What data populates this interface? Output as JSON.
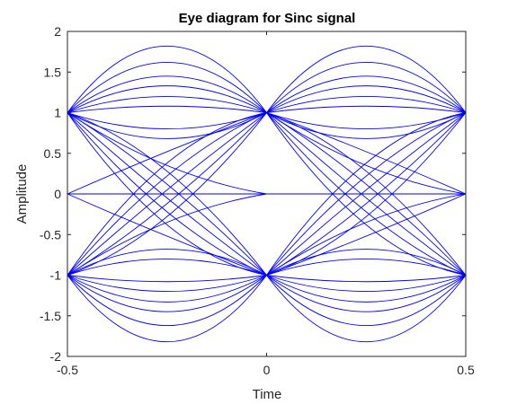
{
  "chart_data": {
    "type": "line",
    "title": "Eye diagram for Sinc signal",
    "xlabel": "Time",
    "ylabel": "Amplitude",
    "xlim": [
      -0.5,
      0.5
    ],
    "ylim": [
      -2,
      2
    ],
    "xticks": [
      -0.5,
      0,
      0.5
    ],
    "xtick_labels": [
      "-0.5",
      "0",
      "0.5"
    ],
    "yticks": [
      -2,
      -1.5,
      -1,
      -0.5,
      0,
      0.5,
      1,
      1.5,
      2
    ],
    "ytick_labels": [
      "-2",
      "-1.5",
      "-1",
      "-0.5",
      "0",
      "0.5",
      "1",
      "1.5",
      "2"
    ],
    "grid": false,
    "line_color": "#0000ff",
    "sample_times": [
      -0.5,
      0,
      0.5
    ],
    "symbol_levels": [
      -1,
      0,
      1
    ],
    "eye_opening_amplitude": [
      -1.82,
      1.82
    ],
    "traces": [
      {
        "x": [
          -0.5,
          -0.25,
          0
        ],
        "y": [
          1,
          1.82,
          1
        ]
      },
      {
        "x": [
          -0.5,
          -0.25,
          0
        ],
        "y": [
          1,
          1.62,
          1
        ]
      },
      {
        "x": [
          -0.5,
          -0.25,
          0
        ],
        "y": [
          1,
          1.45,
          1
        ]
      },
      {
        "x": [
          -0.5,
          -0.25,
          0
        ],
        "y": [
          1,
          1.33,
          1
        ]
      },
      {
        "x": [
          -0.5,
          -0.25,
          0
        ],
        "y": [
          1,
          1.2,
          1
        ]
      },
      {
        "x": [
          -0.5,
          -0.25,
          0
        ],
        "y": [
          1,
          1.08,
          1
        ]
      },
      {
        "x": [
          -0.5,
          -0.25,
          0
        ],
        "y": [
          1,
          0.8,
          1
        ]
      },
      {
        "x": [
          -0.5,
          -0.25,
          0
        ],
        "y": [
          1,
          0.68,
          1
        ]
      },
      {
        "x": [
          -0.5,
          -0.25,
          0
        ],
        "y": [
          -1,
          -1.82,
          -1
        ]
      },
      {
        "x": [
          -0.5,
          -0.25,
          0
        ],
        "y": [
          -1,
          -1.62,
          -1
        ]
      },
      {
        "x": [
          -0.5,
          -0.25,
          0
        ],
        "y": [
          -1,
          -1.45,
          -1
        ]
      },
      {
        "x": [
          -0.5,
          -0.25,
          0
        ],
        "y": [
          -1,
          -1.33,
          -1
        ]
      },
      {
        "x": [
          -0.5,
          -0.25,
          0
        ],
        "y": [
          -1,
          -1.2,
          -1
        ]
      },
      {
        "x": [
          -0.5,
          -0.25,
          0
        ],
        "y": [
          -1,
          -1.08,
          -1
        ]
      },
      {
        "x": [
          -0.5,
          -0.25,
          0
        ],
        "y": [
          -1,
          -0.8,
          -1
        ]
      },
      {
        "x": [
          -0.5,
          -0.25,
          0
        ],
        "y": [
          -1,
          -0.68,
          -1
        ]
      },
      {
        "x": [
          -0.5,
          -0.25,
          0
        ],
        "y": [
          1,
          0.28,
          -1
        ]
      },
      {
        "x": [
          -0.5,
          -0.25,
          0
        ],
        "y": [
          1,
          0.12,
          -1
        ]
      },
      {
        "x": [
          -0.5,
          -0.25,
          0
        ],
        "y": [
          1,
          -0.05,
          -1
        ]
      },
      {
        "x": [
          -0.5,
          -0.25,
          0
        ],
        "y": [
          1,
          -0.22,
          -1
        ]
      },
      {
        "x": [
          -0.5,
          -0.25,
          0
        ],
        "y": [
          1,
          -0.38,
          -1
        ]
      },
      {
        "x": [
          -0.5,
          -0.25,
          0
        ],
        "y": [
          -1,
          -0.28,
          1
        ]
      },
      {
        "x": [
          -0.5,
          -0.25,
          0
        ],
        "y": [
          -1,
          -0.12,
          1
        ]
      },
      {
        "x": [
          -0.5,
          -0.25,
          0
        ],
        "y": [
          -1,
          0.05,
          1
        ]
      },
      {
        "x": [
          -0.5,
          -0.25,
          0
        ],
        "y": [
          -1,
          0.22,
          1
        ]
      },
      {
        "x": [
          -0.5,
          -0.25,
          0
        ],
        "y": [
          -1,
          0.38,
          1
        ]
      },
      {
        "x": [
          -0.5,
          -0.25,
          0
        ],
        "y": [
          0,
          0.52,
          1
        ]
      },
      {
        "x": [
          -0.5,
          -0.25,
          0
        ],
        "y": [
          0,
          -0.52,
          -1
        ]
      },
      {
        "x": [
          -0.5,
          -0.25,
          0
        ],
        "y": [
          1,
          0.35,
          0
        ]
      },
      {
        "x": [
          -0.5,
          -0.25,
          0
        ],
        "y": [
          -1,
          -0.35,
          0
        ]
      },
      {
        "x": [
          -0.5,
          -0.25,
          0
        ],
        "y": [
          0,
          0,
          0
        ]
      },
      {
        "x": [
          0,
          0.25,
          0.5
        ],
        "y": [
          1,
          1.82,
          1
        ]
      },
      {
        "x": [
          0,
          0.25,
          0.5
        ],
        "y": [
          1,
          1.62,
          1
        ]
      },
      {
        "x": [
          0,
          0.25,
          0.5
        ],
        "y": [
          1,
          1.45,
          1
        ]
      },
      {
        "x": [
          0,
          0.25,
          0.5
        ],
        "y": [
          1,
          1.33,
          1
        ]
      },
      {
        "x": [
          0,
          0.25,
          0.5
        ],
        "y": [
          1,
          1.2,
          1
        ]
      },
      {
        "x": [
          0,
          0.25,
          0.5
        ],
        "y": [
          1,
          1.08,
          1
        ]
      },
      {
        "x": [
          0,
          0.25,
          0.5
        ],
        "y": [
          1,
          0.8,
          1
        ]
      },
      {
        "x": [
          0,
          0.25,
          0.5
        ],
        "y": [
          1,
          0.68,
          1
        ]
      },
      {
        "x": [
          0,
          0.25,
          0.5
        ],
        "y": [
          -1,
          -1.82,
          -1
        ]
      },
      {
        "x": [
          0,
          0.25,
          0.5
        ],
        "y": [
          -1,
          -1.62,
          -1
        ]
      },
      {
        "x": [
          0,
          0.25,
          0.5
        ],
        "y": [
          -1,
          -1.45,
          -1
        ]
      },
      {
        "x": [
          0,
          0.25,
          0.5
        ],
        "y": [
          -1,
          -1.33,
          -1
        ]
      },
      {
        "x": [
          0,
          0.25,
          0.5
        ],
        "y": [
          -1,
          -1.2,
          -1
        ]
      },
      {
        "x": [
          0,
          0.25,
          0.5
        ],
        "y": [
          -1,
          -1.08,
          -1
        ]
      },
      {
        "x": [
          0,
          0.25,
          0.5
        ],
        "y": [
          -1,
          -0.8,
          -1
        ]
      },
      {
        "x": [
          0,
          0.25,
          0.5
        ],
        "y": [
          -1,
          -0.68,
          -1
        ]
      },
      {
        "x": [
          0,
          0.25,
          0.5
        ],
        "y": [
          1,
          0.28,
          -1
        ]
      },
      {
        "x": [
          0,
          0.25,
          0.5
        ],
        "y": [
          1,
          0.12,
          -1
        ]
      },
      {
        "x": [
          0,
          0.25,
          0.5
        ],
        "y": [
          1,
          -0.05,
          -1
        ]
      },
      {
        "x": [
          0,
          0.25,
          0.5
        ],
        "y": [
          1,
          -0.22,
          -1
        ]
      },
      {
        "x": [
          0,
          0.25,
          0.5
        ],
        "y": [
          1,
          -0.38,
          -1
        ]
      },
      {
        "x": [
          0,
          0.25,
          0.5
        ],
        "y": [
          -1,
          -0.28,
          1
        ]
      },
      {
        "x": [
          0,
          0.25,
          0.5
        ],
        "y": [
          -1,
          -0.12,
          1
        ]
      },
      {
        "x": [
          0,
          0.25,
          0.5
        ],
        "y": [
          -1,
          0.05,
          1
        ]
      },
      {
        "x": [
          0,
          0.25,
          0.5
        ],
        "y": [
          -1,
          0.22,
          1
        ]
      },
      {
        "x": [
          0,
          0.25,
          0.5
        ],
        "y": [
          -1,
          0.38,
          1
        ]
      },
      {
        "x": [
          0,
          0.25,
          0.5
        ],
        "y": [
          1,
          0.52,
          0
        ]
      },
      {
        "x": [
          0,
          0.25,
          0.5
        ],
        "y": [
          -1,
          -0.52,
          0
        ]
      },
      {
        "x": [
          0,
          0.25,
          0.5
        ],
        "y": [
          1,
          0.35,
          0
        ]
      },
      {
        "x": [
          0,
          0.25,
          0.5
        ],
        "y": [
          -1,
          -0.35,
          0
        ]
      },
      {
        "x": [
          0,
          0.25,
          0.5
        ],
        "y": [
          0,
          0,
          0
        ]
      }
    ]
  }
}
